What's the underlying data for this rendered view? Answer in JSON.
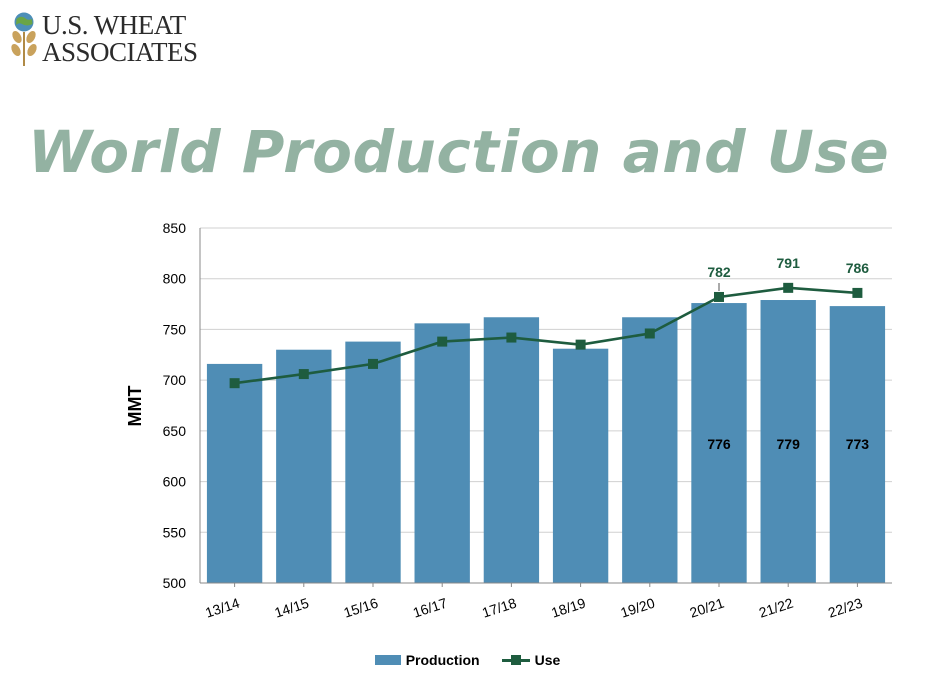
{
  "header": {
    "logo_line1": "U.S. WHEAT",
    "logo_line2": "ASSOCIATES",
    "title": "World Production and Use"
  },
  "colors": {
    "title": "#93b2a2",
    "production": "#4f8db5",
    "use": "#1e5c3f"
  },
  "chart_data": {
    "type": "bar",
    "title": "",
    "xlabel": "",
    "ylabel": "MMT",
    "ylim": [
      500,
      850
    ],
    "yticks": [
      500,
      550,
      600,
      650,
      700,
      750,
      800,
      850
    ],
    "grid": true,
    "legend_position": "bottom",
    "categories": [
      "13/14",
      "14/15",
      "15/16",
      "16/17",
      "17/18",
      "18/19",
      "19/20",
      "20/21",
      "21/22",
      "22/23"
    ],
    "series": [
      {
        "name": "Production",
        "type": "bar",
        "color": "#4f8db5",
        "values": [
          716,
          730,
          738,
          756,
          762,
          731,
          762,
          776,
          779,
          773
        ],
        "labels": [
          null,
          null,
          null,
          null,
          null,
          null,
          null,
          "776",
          "779",
          "773"
        ]
      },
      {
        "name": "Use",
        "type": "line",
        "color": "#1e5c3f",
        "marker": "square",
        "values": [
          697,
          706,
          716,
          738,
          742,
          735,
          746,
          782,
          791,
          786
        ],
        "labels": [
          null,
          null,
          null,
          null,
          null,
          null,
          null,
          "782",
          "791",
          "786"
        ]
      }
    ]
  }
}
